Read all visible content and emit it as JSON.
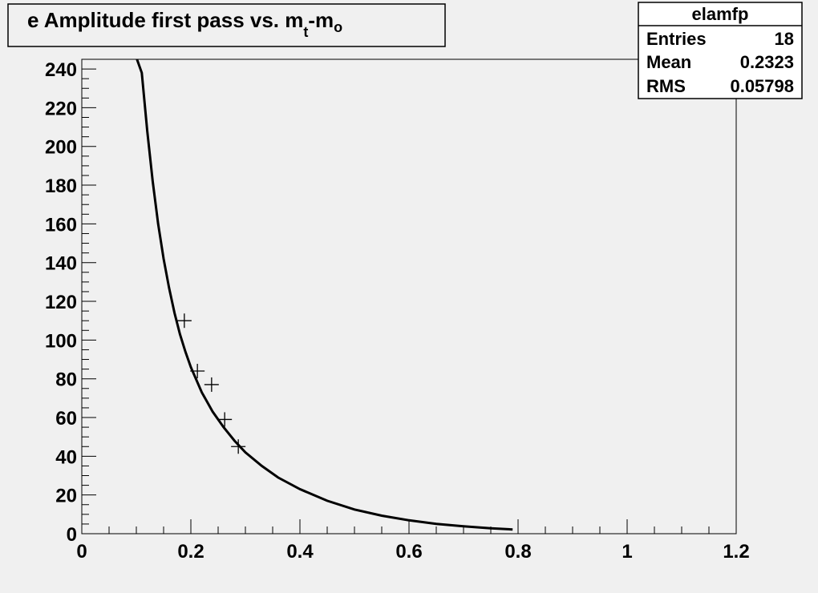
{
  "chart_data": {
    "type": "scatter",
    "title_main": "e Amplitude first pass vs. m",
    "title_sub1": "t",
    "title_mid": "-m",
    "title_sub2": "o",
    "xlabel": "",
    "ylabel": "",
    "xlim": [
      0,
      1.2
    ],
    "ylim": [
      0,
      245
    ],
    "x_ticks": [
      0,
      0.2,
      0.4,
      0.6,
      0.8,
      1,
      1.2
    ],
    "x_tick_labels": [
      "0",
      "0.2",
      "0.4",
      "0.6",
      "0.8",
      "1",
      "1.2"
    ],
    "y_ticks": [
      0,
      20,
      40,
      60,
      80,
      100,
      120,
      140,
      160,
      180,
      200,
      220,
      240
    ],
    "y_tick_labels": [
      "0",
      "20",
      "40",
      "60",
      "80",
      "100",
      "120",
      "140",
      "160",
      "180",
      "200",
      "220",
      "240"
    ],
    "points": [
      {
        "x": 0.188,
        "y": 110
      },
      {
        "x": 0.212,
        "y": 84
      },
      {
        "x": 0.238,
        "y": 77
      },
      {
        "x": 0.262,
        "y": 59
      },
      {
        "x": 0.287,
        "y": 45
      }
    ],
    "fit_curve": {
      "x": [
        0.11,
        0.12,
        0.13,
        0.14,
        0.15,
        0.16,
        0.17,
        0.18,
        0.19,
        0.2,
        0.22,
        0.24,
        0.26,
        0.28,
        0.3,
        0.33,
        0.36,
        0.4,
        0.45,
        0.5,
        0.55,
        0.6,
        0.65,
        0.7,
        0.75,
        0.79
      ],
      "y": [
        238,
        208,
        182,
        160,
        142,
        127,
        114,
        103,
        94,
        86,
        73,
        63,
        55,
        48,
        42,
        35,
        29,
        23,
        17,
        12.5,
        9.3,
        6.9,
        5.1,
        3.8,
        2.8,
        2.2
      ]
    },
    "grid": false,
    "marker": "cross",
    "stats_box": {
      "title": "elamfp",
      "rows": [
        {
          "label": "Entries",
          "value": "18"
        },
        {
          "label": "Mean",
          "value": "0.2323"
        },
        {
          "label": "RMS",
          "value": "0.05798"
        }
      ]
    }
  }
}
